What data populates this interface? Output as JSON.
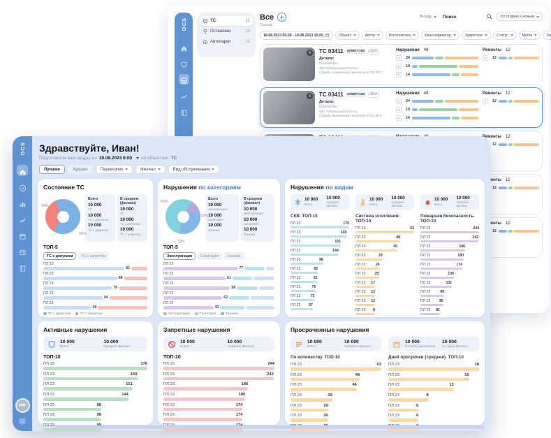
{
  "app": {
    "logo": "OCS"
  },
  "colors": {
    "sidebar": "#5f92d3",
    "accent": "#3f7fd6",
    "card_bar_segments": [
      "#8fb7ea",
      "#97d4a4",
      "#f7c58b"
    ]
  },
  "back_window": {
    "sidebar_icons": [
      {
        "icon": "home-icon",
        "active": false
      },
      {
        "icon": "monitor-icon",
        "active": false
      },
      {
        "icon": "bus-icon",
        "active": true
      },
      {
        "icon": "line-chart-icon",
        "active": false
      },
      {
        "icon": "book-icon",
        "active": false
      }
    ],
    "menu": [
      {
        "icon": "bus-icon",
        "label": "ТС",
        "count": "12",
        "active": true
      },
      {
        "icon": "bus-stop-icon",
        "label": "Остановки",
        "count": "12",
        "active": false
      },
      {
        "icon": "depot-icon",
        "label": "Автопарки",
        "count": "12",
        "active": false
      }
    ],
    "header": {
      "title": "Все",
      "period_label": "Период",
      "scope_select": "Всюду",
      "search_label": "Поиск",
      "sort_select": "От старых к новым"
    },
    "filters": {
      "date_range": "18.08.2023 05:00 - 19.08.2023 16:00",
      "chips": [
        "Объект",
        "Автор",
        "Исполнитель",
        "Классификатор",
        "Запретное",
        "Статус",
        "Метка",
        "Тег"
      ]
    },
    "cards_count": 5,
    "selected_card_index": 1,
    "card": {
      "title": "ТС 03411",
      "plate": "А055ТТ150",
      "tag": "ХОЗ",
      "camera_badge": "4",
      "details_label": "Детали:",
      "detail_lines": [
        "Ю МАМАМА",
        "VIN: IVANxxxxxxxxYYYxxx",
        "Служба технического контроля (СТК) МГТ"
      ],
      "violations_label": "Нарушения",
      "violations_total": "48",
      "violation_rows": [
        {
          "icon": "info-icon",
          "value": "24",
          "segments": [
            34,
            13,
            53
          ]
        },
        {
          "icon": "warning-icon",
          "value": "10",
          "segments": [
            9,
            60,
            31
          ]
        },
        {
          "icon": "tool-icon",
          "value": "14",
          "segments": [
            60,
            13,
            27
          ]
        }
      ],
      "repairs_label": "Ремонты",
      "repairs_total": "12",
      "repair_rows": [
        {
          "icon": "tool-icon",
          "value": "12",
          "segments": [
            22,
            11,
            67
          ]
        }
      ]
    }
  },
  "dashboard": {
    "sidebar_icons": [
      {
        "icon": "home-icon",
        "active": true
      },
      {
        "icon": "check-circle-icon",
        "active": false
      },
      {
        "icon": "bar-chart-icon",
        "active": false
      },
      {
        "icon": "line-chart-icon",
        "active": false
      },
      {
        "icon": "calendar-icon",
        "active": false
      },
      {
        "icon": "id-card-icon",
        "active": false
      },
      {
        "icon": "book-icon",
        "active": false
      }
    ],
    "avatar": "ИФ",
    "greeting": "Здравствуйте, Иван!",
    "subtitle": {
      "prefix": "Подготовили вам сводку на",
      "date": "19.08.2023 6:00",
      "middle": "по объектам:",
      "object": "ТС"
    },
    "filter_chips": [
      {
        "label": "Лучшие",
        "style": "active"
      },
      {
        "label": "Худшие",
        "style": "plain"
      },
      {
        "label": "Перевозчик",
        "style": "dropdown"
      },
      {
        "label": "Филиал",
        "style": "dropdown"
      },
      {
        "label": "Вид обслуживания",
        "style": "dropdown"
      }
    ],
    "panels": {
      "state": {
        "title": "Состояние ТС",
        "donut": {
          "segments": [
            {
              "label": "34%",
              "value": 34,
              "color": "#f0837c"
            },
            {
              "label": "66%",
              "value": 66,
              "color": "#7cb0e8"
            }
          ]
        },
        "stats": [
          {
            "header": "Всего",
            "items": [
              {
                "value": "10 000",
                "caption": "ТС"
              },
              {
                "value": "10 000",
                "caption": "ТС с допуском"
              },
              {
                "value": "10 000",
                "caption": "ТС с запретом"
              }
            ]
          },
          {
            "header": "В среднем (филиал)",
            "items": [
              {
                "value": "10 000",
                "caption": "ТС"
              },
              {
                "value": "10 000",
                "caption": "ТС с допуском"
              },
              {
                "value": "10 000",
                "caption": "ТС с запретом"
              }
            ]
          }
        ],
        "top_label": "ТОП-5",
        "toggles": [
          {
            "label": "ТС с допуском",
            "active": true
          },
          {
            "label": "ТС с запретом",
            "active": false
          }
        ],
        "bar_color": "#c9ddf4",
        "rest_color": "#f5c1bd",
        "rows": [
          {
            "label": "ПЛ 23",
            "value": "82",
            "width": 78
          },
          {
            "label": "ПЛ 23",
            "value": "68",
            "width": 71
          },
          {
            "label": "ПЛ 23",
            "value": "76",
            "width": 66
          },
          {
            "label": "ПЛ 23",
            "value": "94",
            "width": 57
          },
          {
            "label": "ПЛ 23",
            "value": "39",
            "width": 46
          }
        ],
        "legend": [
          {
            "label": "ТС с допуском",
            "color": "#7cb0e8"
          },
          {
            "label": "ТС с запретом",
            "color": "#f0837c"
          }
        ]
      },
      "categories": {
        "title": "Нарушения",
        "title_accent": "по категориям",
        "donut": {
          "segments": [
            {
              "label": "55%",
              "value": 55,
              "color": "#7ed3dc"
            },
            {
              "label": "33%",
              "value": 33,
              "color": "#84b7ea"
            },
            {
              "label": "12%",
              "value": 12,
              "color": "#b7a6da"
            }
          ]
        },
        "stats": [
          {
            "header": "Всего",
            "items": [
              {
                "value": "10 000",
                "caption": "Эксплуатация"
              },
              {
                "value": "10 000",
                "caption": "Санитария"
              },
              {
                "value": "10 000",
                "caption": "Техника"
              }
            ]
          },
          {
            "header": "В среднем (филиал)",
            "items": [
              {
                "value": "10 000",
                "caption": "Эксплуатация"
              },
              {
                "value": "10 000",
                "caption": "Санитария"
              },
              {
                "value": "10 000",
                "caption": "Техника"
              }
            ]
          }
        ],
        "top_label": "ТОП-5",
        "tabs": [
          {
            "label": "Эксплуатация",
            "active": true
          },
          {
            "label": "Санитария",
            "active": false
          },
          {
            "label": "Техника",
            "active": false
          }
        ],
        "bar_color": "#d8c9ea",
        "seg2_color": "#bce4e8",
        "rest_color": "#cfe0f4",
        "rows": [
          {
            "label": "ПЛ 23",
            "value": "77",
            "width": 67,
            "width2": 18
          },
          {
            "label": "ПЛ 23",
            "value": "61",
            "width": 56,
            "width2": 18
          },
          {
            "label": "ПЛ 23",
            "value": "58",
            "width": 60,
            "width2": 19
          },
          {
            "label": "ПЛ 23",
            "value": "62",
            "width": 53,
            "width2": 18
          },
          {
            "label": "ПЛ 23",
            "value": "43",
            "width": 45,
            "width2": 22
          }
        ],
        "legend": [
          {
            "label": "Эксплуатация",
            "color": "#b7a6da"
          },
          {
            "label": "Санитария",
            "color": "#7ed3dc"
          },
          {
            "label": "Техника",
            "color": "#84b7ea"
          }
        ]
      },
      "kinds": {
        "title": "Нарушения",
        "title_accent": "по видам",
        "columns": [
          {
            "icon": "snowflake-icon",
            "icon_color": "#4f94dd",
            "stats": [
              {
                "value": "10 000",
                "caption": "Всего"
              },
              {
                "value": "10 000",
                "caption": "Среднее-филиал"
              }
            ],
            "subtitle": "СКВ. ТОП-10",
            "bar_color": "#bce4e8",
            "rows": [
              {
                "label": "ПЛ 23",
                "value": 176
              },
              {
                "label": "ПЛ 23",
                "value": 169
              },
              {
                "label": "ПЛ 23",
                "value": 151
              },
              {
                "label": "ПЛ 23",
                "value": 144
              },
              {
                "label": "ПЛ 23",
                "value": 98
              },
              {
                "label": "ПЛ 23",
                "value": 82
              },
              {
                "label": "ПЛ 23",
                "value": 81
              },
              {
                "label": "ПЛ 23",
                "value": 76
              },
              {
                "label": "ПЛ 23",
                "value": 72
              },
              {
                "label": "ПЛ 23",
                "value": 67
              }
            ]
          },
          {
            "icon": "thermometer-icon",
            "icon_color": "#f09f4d",
            "stats": [
              {
                "value": "10 000",
                "caption": "Всего"
              },
              {
                "value": "10 000",
                "caption": "Среднее-филиал"
              }
            ],
            "subtitle": "Система отопления. ТОП-10",
            "bar_color": "#fcd9a4",
            "rows": [
              {
                "label": "ПЛ 23",
                "value": 63
              },
              {
                "label": "ПЛ 23",
                "value": 48
              },
              {
                "label": "ПЛ 23",
                "value": 45
              },
              {
                "label": "ПЛ 23",
                "value": 29
              },
              {
                "label": "ПЛ 23",
                "value": 26
              },
              {
                "label": "ПЛ 23",
                "value": 25
              },
              {
                "label": "ПЛ 23",
                "value": 17
              },
              {
                "label": "ПЛ 23",
                "value": 13
              },
              {
                "label": "ПЛ 23",
                "value": 12
              },
              {
                "label": "ПЛ 23",
                "value": 8
              }
            ]
          },
          {
            "icon": "flame-icon",
            "icon_color": "#e25b4f",
            "stats": [
              {
                "value": "10 000",
                "caption": "Всего"
              },
              {
                "value": "10 000",
                "caption": "Среднее-филиал"
              }
            ],
            "subtitle": "Пожарная безопасность. ТОП-10",
            "bar_color": "#d8c9ea",
            "rows": [
              {
                "label": "ПЛ 23",
                "value": 244
              },
              {
                "label": "ПЛ 23",
                "value": 242
              },
              {
                "label": "ПЛ 23",
                "value": 186
              },
              {
                "label": "ПЛ 23",
                "value": 180
              },
              {
                "label": "ПЛ 23",
                "value": 174
              },
              {
                "label": "ПЛ 23",
                "value": 139
              },
              {
                "label": "ПЛ 23",
                "value": 131
              },
              {
                "label": "ПЛ 23",
                "value": 99
              },
              {
                "label": "ПЛ 23",
                "value": 95
              },
              {
                "label": "ПЛ 23",
                "value": 81
              }
            ]
          }
        ]
      },
      "active": {
        "title": "Активные нарушения",
        "icon": "shield-icon",
        "icon_color": "#4f94dd",
        "stats": [
          {
            "value": "10 000",
            "caption": "Всего"
          },
          {
            "value": "10 000",
            "caption": "Среднее-филиал"
          }
        ],
        "top_label": "ТОП-10",
        "bar_color": "#b8e0c2",
        "rows": [
          {
            "label": "ПЛ 23",
            "value": 176
          },
          {
            "label": "ПЛ 23",
            "value": 159
          },
          {
            "label": "ПЛ 23",
            "value": 151
          },
          {
            "label": "ПЛ 23",
            "value": 144
          },
          {
            "label": "ПЛ 23",
            "value": 98
          },
          {
            "label": "ПЛ 23",
            "value": 98
          },
          {
            "label": "ПЛ 23",
            "value": 98
          }
        ]
      },
      "banned": {
        "title": "Запретные нарушения",
        "icon": "no-entry-icon",
        "icon_color": "#e25b4f",
        "stats": [
          {
            "value": "10 000",
            "caption": "Всего"
          },
          {
            "value": "10 000",
            "caption": "Среднее-филиал"
          }
        ],
        "top_label": "ТОП-10",
        "bar_color": "#f6c5c8",
        "rows": [
          {
            "label": "ПЛ 23",
            "value": 244
          },
          {
            "label": "ПЛ 23",
            "value": 242
          },
          {
            "label": "ПЛ 23",
            "value": 186
          },
          {
            "label": "ПЛ 23",
            "value": 180
          },
          {
            "label": "ПЛ 23",
            "value": 174
          },
          {
            "label": "ПЛ 23",
            "value": 174
          },
          {
            "label": "ПЛ 23",
            "value": 174
          }
        ]
      },
      "overdue": {
        "title": "Просроченные нарушения",
        "bar_color": "#fcd9a4",
        "halves": [
          {
            "icon": "list-icon",
            "icon_color": "#f09f4d",
            "stats": [
              {
                "value": "10 000",
                "caption": "Всего"
              },
              {
                "value": "10 000",
                "caption": "Среднее-филиал"
              }
            ],
            "subtitle": "По количеству. ТОП-10",
            "rows": [
              {
                "label": "ПЛ 23",
                "value": 63
              },
              {
                "label": "ПЛ 23",
                "value": 48
              },
              {
                "label": "ПЛ 23",
                "value": 46
              },
              {
                "label": "ПЛ 23",
                "value": 29
              },
              {
                "label": "ПЛ 23",
                "value": 26
              },
              {
                "label": "ПЛ 23",
                "value": 26
              },
              {
                "label": "ПЛ 23",
                "value": 26
              }
            ]
          },
          {
            "icon": "calendar-icon",
            "icon_color": "#f09f4d",
            "stats": [
              {
                "value": "10 000",
                "caption": "По всем филиалам"
              },
              {
                "value": "10 000",
                "caption": "На один филиал"
              }
            ],
            "subtitle": "Дней просрочки (среднее). ТОП-10",
            "rows": [
              {
                "label": "ПЛ 23",
                "value": 18
              },
              {
                "label": "ПЛ 23",
                "value": 16
              },
              {
                "label": "ПЛ 23",
                "value": 13
              },
              {
                "label": "ПЛ 23",
                "value": 8
              },
              {
                "label": "ПЛ 23",
                "value": 6
              },
              {
                "label": "ПЛ 23",
                "value": 6
              },
              {
                "label": "ПЛ 23",
                "value": 6
              }
            ]
          }
        ]
      }
    }
  }
}
